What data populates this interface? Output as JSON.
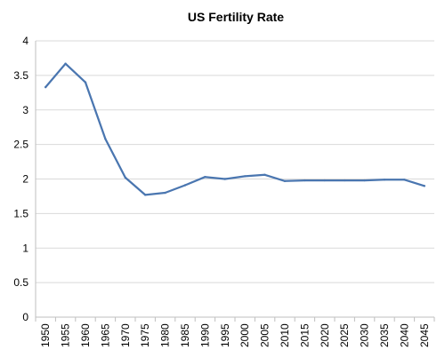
{
  "chart_data": {
    "type": "line",
    "title": "US Fertility Rate",
    "xlabel": "",
    "ylabel": "",
    "x": [
      "1950",
      "1955",
      "1960",
      "1965",
      "1970",
      "1975",
      "1980",
      "1985",
      "1990",
      "1995",
      "2000",
      "2005",
      "2010",
      "2015",
      "2020",
      "2025",
      "2030",
      "2035",
      "2040",
      "2045"
    ],
    "series": [
      {
        "values": [
          3.33,
          3.67,
          3.4,
          2.58,
          2.02,
          1.77,
          1.8,
          1.91,
          2.03,
          2.0,
          2.04,
          2.06,
          1.97,
          1.98,
          1.98,
          1.98,
          1.98,
          1.99,
          1.99,
          1.9
        ]
      }
    ],
    "ylim": [
      0,
      4
    ],
    "yticks": [
      "0",
      "0.5",
      "1",
      "1.5",
      "2",
      "2.5",
      "3",
      "3.5",
      "4"
    ],
    "grid": true,
    "line_color": "#4a76b0"
  }
}
